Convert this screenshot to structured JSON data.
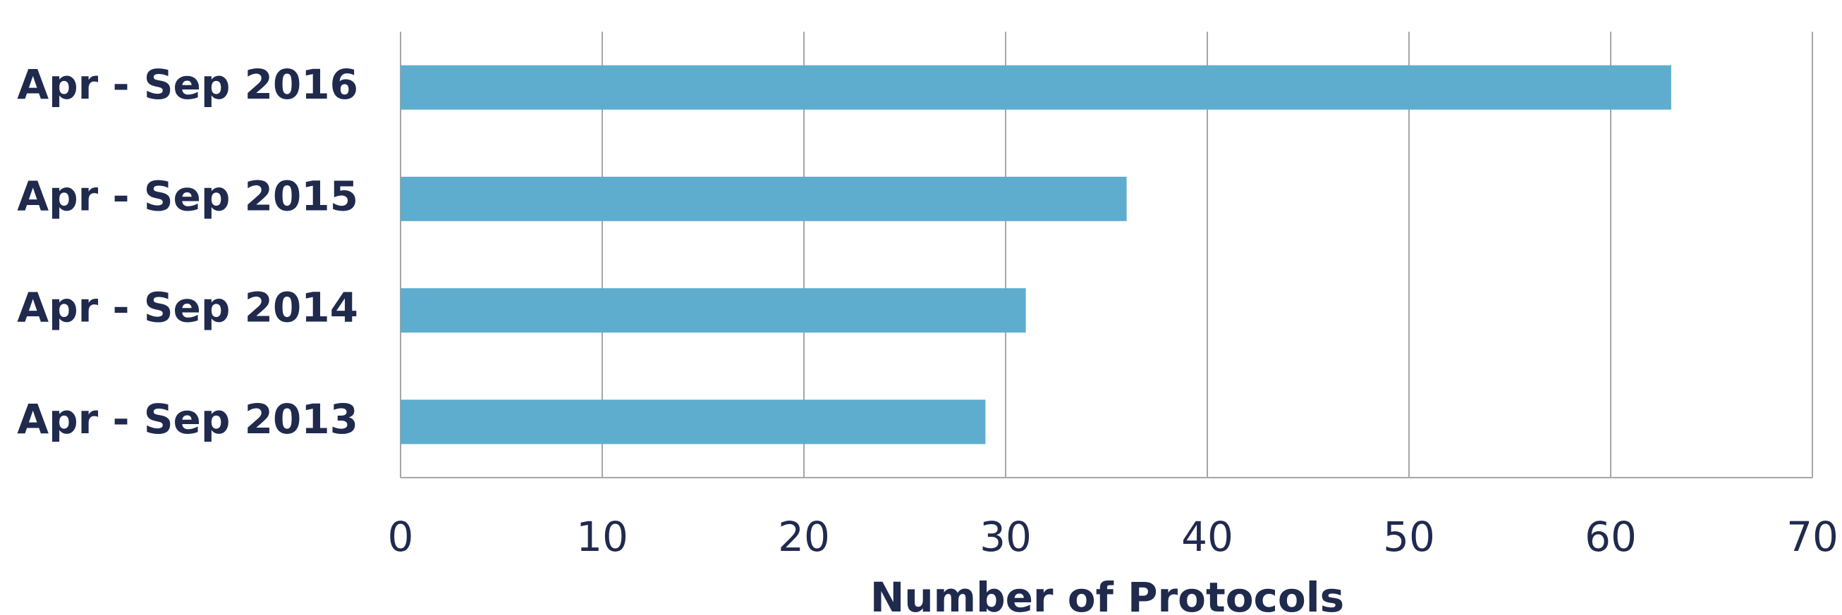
{
  "chart_data": {
    "type": "bar",
    "orientation": "horizontal",
    "categories": [
      "Apr - Sep 2016",
      "Apr - Sep 2015",
      "Apr - Sep 2014",
      "Apr - Sep 2013"
    ],
    "values": [
      63,
      36,
      31,
      29
    ],
    "title": "",
    "xlabel": "Number of Protocols",
    "ylabel": "",
    "xlim": [
      0,
      70
    ],
    "xticks": [
      "0",
      "10",
      "20",
      "30",
      "40",
      "50",
      "60",
      "70"
    ],
    "grid": "vertical",
    "legend": "none",
    "bar_color": "#5eadcf",
    "text_color": "#1f2a4d",
    "grid_color": "#a6a6a6"
  }
}
